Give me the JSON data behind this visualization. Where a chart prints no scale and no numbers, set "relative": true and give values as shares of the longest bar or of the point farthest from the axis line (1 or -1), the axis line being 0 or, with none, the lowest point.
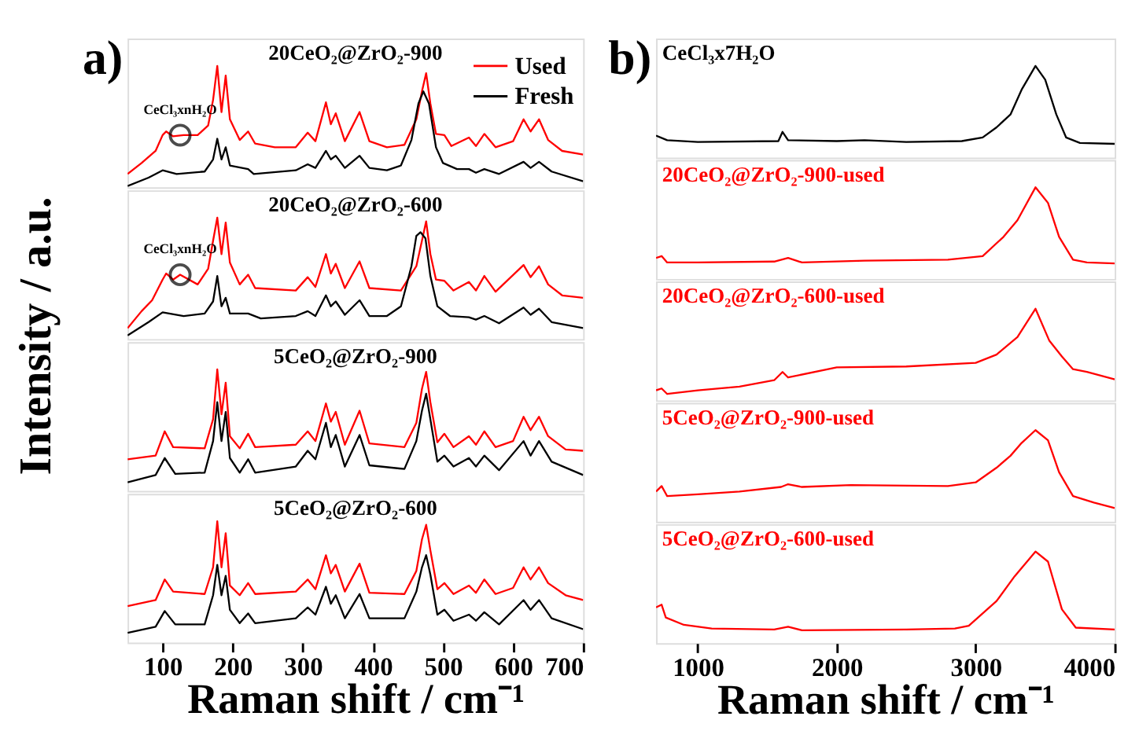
{
  "chart_data": [
    {
      "type": "line",
      "relative": true,
      "title": "20CeO₂@ZrO₂-900",
      "xlim": [
        50,
        700
      ],
      "xticks": [
        100,
        200,
        300,
        400,
        500,
        600,
        700
      ],
      "tick_labels": false,
      "legend": "top right",
      "annotations": [
        "a)",
        {
          "text": "CeCl₃xnH₂O",
          "x": 125,
          "y": 0.43
        }
      ],
      "series": [
        {
          "name": "Used",
          "color": "#ff0000",
          "x": [
            50,
            70,
            90,
            100,
            105,
            115,
            130,
            150,
            165,
            172,
            178,
            184,
            190,
            196,
            210,
            222,
            232,
            260,
            290,
            307,
            318,
            333,
            340,
            347,
            360,
            381,
            395,
            420,
            445,
            462,
            470,
            476,
            482,
            490,
            502,
            512,
            537,
            547,
            559,
            575,
            600,
            615,
            625,
            637,
            650,
            670,
            700
          ],
          "values": [
            0.11,
            0.2,
            0.3,
            0.43,
            0.46,
            0.42,
            0.43,
            0.43,
            0.51,
            0.72,
            1.0,
            0.62,
            0.92,
            0.56,
            0.39,
            0.46,
            0.36,
            0.33,
            0.33,
            0.45,
            0.38,
            0.7,
            0.52,
            0.61,
            0.38,
            0.62,
            0.38,
            0.33,
            0.35,
            0.56,
            0.79,
            0.94,
            0.69,
            0.44,
            0.43,
            0.34,
            0.41,
            0.34,
            0.44,
            0.33,
            0.38,
            0.56,
            0.46,
            0.56,
            0.39,
            0.3,
            0.27
          ]
        },
        {
          "name": "Fresh",
          "color": "#000000",
          "x": [
            50,
            80,
            100,
            120,
            160,
            172,
            178,
            184,
            190,
            196,
            222,
            230,
            290,
            307,
            318,
            333,
            340,
            347,
            360,
            381,
            395,
            420,
            440,
            455,
            465,
            472,
            480,
            490,
            500,
            520,
            537,
            547,
            559,
            580,
            615,
            625,
            637,
            655,
            700
          ],
          "values": [
            0.01,
            0.08,
            0.14,
            0.11,
            0.13,
            0.23,
            0.4,
            0.23,
            0.33,
            0.18,
            0.15,
            0.11,
            0.14,
            0.19,
            0.16,
            0.3,
            0.23,
            0.26,
            0.16,
            0.26,
            0.16,
            0.14,
            0.18,
            0.39,
            0.69,
            0.79,
            0.69,
            0.33,
            0.2,
            0.15,
            0.15,
            0.12,
            0.15,
            0.11,
            0.21,
            0.16,
            0.21,
            0.13,
            0.05
          ]
        }
      ]
    },
    {
      "type": "line",
      "relative": true,
      "title": "20CeO₂@ZrO₂-600",
      "ylabel": "Intensity / a.u.",
      "xlim": [
        50,
        700
      ],
      "xticks": [
        100,
        200,
        300,
        400,
        500,
        600,
        700
      ],
      "tick_labels": false,
      "annotations": [
        {
          "text": "CeCl₃xnH₂O",
          "x": 125,
          "y": 0.53
        }
      ],
      "series": [
        {
          "color": "#ff0000",
          "x": [
            50,
            70,
            85,
            100,
            105,
            115,
            125,
            150,
            165,
            172,
            178,
            184,
            190,
            196,
            210,
            222,
            232,
            290,
            307,
            318,
            333,
            340,
            347,
            360,
            381,
            395,
            440,
            462,
            470,
            476,
            482,
            490,
            502,
            515,
            537,
            547,
            559,
            575,
            615,
            625,
            637,
            650,
            670,
            700
          ],
          "values": [
            0.09,
            0.23,
            0.32,
            0.49,
            0.54,
            0.49,
            0.53,
            0.45,
            0.58,
            0.81,
            1.0,
            0.7,
            0.96,
            0.63,
            0.45,
            0.53,
            0.42,
            0.4,
            0.51,
            0.43,
            0.7,
            0.54,
            0.62,
            0.42,
            0.64,
            0.42,
            0.4,
            0.6,
            0.81,
            0.97,
            0.7,
            0.49,
            0.48,
            0.4,
            0.47,
            0.4,
            0.52,
            0.39,
            0.61,
            0.51,
            0.6,
            0.45,
            0.36,
            0.34
          ]
        },
        {
          "color": "#000000",
          "x": [
            50,
            80,
            100,
            130,
            160,
            172,
            178,
            184,
            190,
            196,
            222,
            240,
            290,
            307,
            318,
            333,
            340,
            347,
            360,
            381,
            395,
            420,
            440,
            455,
            462,
            468,
            475,
            482,
            492,
            510,
            537,
            547,
            559,
            580,
            615,
            625,
            637,
            655,
            700
          ],
          "values": [
            0.03,
            0.14,
            0.22,
            0.19,
            0.21,
            0.31,
            0.52,
            0.27,
            0.34,
            0.21,
            0.21,
            0.17,
            0.19,
            0.23,
            0.19,
            0.36,
            0.27,
            0.31,
            0.2,
            0.32,
            0.19,
            0.19,
            0.27,
            0.6,
            0.85,
            0.88,
            0.83,
            0.52,
            0.27,
            0.19,
            0.18,
            0.16,
            0.19,
            0.13,
            0.26,
            0.2,
            0.25,
            0.14,
            0.09
          ]
        }
      ]
    },
    {
      "type": "line",
      "relative": true,
      "title": "5CeO₂@ZrO₂-900",
      "xlim": [
        50,
        700
      ],
      "xticks": [
        100,
        200,
        300,
        400,
        500,
        600,
        700
      ],
      "tick_labels": false,
      "series": [
        {
          "color": "#ff0000",
          "x": [
            50,
            90,
            103,
            115,
            160,
            172,
            178,
            184,
            190,
            196,
            210,
            222,
            232,
            290,
            307,
            318,
            333,
            340,
            347,
            360,
            381,
            395,
            445,
            462,
            470,
            476,
            482,
            492,
            502,
            515,
            537,
            547,
            559,
            575,
            600,
            615,
            625,
            637,
            650,
            675,
            700
          ],
          "values": [
            0.26,
            0.29,
            0.49,
            0.36,
            0.35,
            0.59,
            1.0,
            0.63,
            0.89,
            0.45,
            0.35,
            0.47,
            0.36,
            0.38,
            0.49,
            0.41,
            0.72,
            0.57,
            0.65,
            0.38,
            0.66,
            0.39,
            0.36,
            0.56,
            0.84,
            0.98,
            0.73,
            0.4,
            0.47,
            0.36,
            0.45,
            0.38,
            0.49,
            0.36,
            0.41,
            0.61,
            0.5,
            0.61,
            0.45,
            0.34,
            0.33
          ]
        },
        {
          "color": "#000000",
          "x": [
            50,
            90,
            103,
            118,
            160,
            172,
            178,
            184,
            190,
            196,
            210,
            222,
            232,
            290,
            307,
            318,
            333,
            340,
            347,
            360,
            381,
            395,
            445,
            462,
            470,
            476,
            482,
            492,
            502,
            515,
            537,
            547,
            559,
            580,
            615,
            625,
            637,
            655,
            700
          ],
          "values": [
            0.07,
            0.13,
            0.27,
            0.14,
            0.15,
            0.41,
            0.73,
            0.41,
            0.65,
            0.27,
            0.15,
            0.26,
            0.15,
            0.2,
            0.33,
            0.26,
            0.56,
            0.36,
            0.46,
            0.2,
            0.46,
            0.21,
            0.18,
            0.41,
            0.66,
            0.8,
            0.59,
            0.24,
            0.29,
            0.2,
            0.27,
            0.2,
            0.29,
            0.17,
            0.41,
            0.29,
            0.41,
            0.24,
            0.13
          ]
        }
      ]
    },
    {
      "type": "line",
      "relative": true,
      "title": "5CeO₂@ZrO₂-600",
      "xlabel": "Raman shift / cm⁻¹",
      "xlim": [
        50,
        700
      ],
      "xticks": [
        100,
        200,
        300,
        400,
        500,
        600,
        700
      ],
      "tick_labels": "x",
      "series": [
        {
          "color": "#ff0000",
          "x": [
            50,
            90,
            103,
            115,
            160,
            172,
            178,
            184,
            190,
            196,
            210,
            222,
            232,
            290,
            307,
            318,
            333,
            340,
            347,
            360,
            381,
            395,
            445,
            462,
            470,
            476,
            482,
            492,
            502,
            515,
            537,
            547,
            559,
            575,
            600,
            615,
            625,
            637,
            650,
            675,
            700
          ],
          "values": [
            0.3,
            0.35,
            0.52,
            0.42,
            0.4,
            0.62,
            1.0,
            0.62,
            0.9,
            0.47,
            0.39,
            0.49,
            0.4,
            0.42,
            0.52,
            0.44,
            0.72,
            0.57,
            0.64,
            0.42,
            0.65,
            0.41,
            0.4,
            0.59,
            0.85,
            0.97,
            0.76,
            0.44,
            0.49,
            0.4,
            0.47,
            0.41,
            0.52,
            0.4,
            0.45,
            0.62,
            0.52,
            0.62,
            0.49,
            0.39,
            0.35
          ]
        },
        {
          "color": "#000000",
          "x": [
            50,
            90,
            103,
            118,
            160,
            172,
            178,
            184,
            190,
            196,
            210,
            222,
            232,
            290,
            307,
            318,
            333,
            340,
            347,
            360,
            381,
            395,
            445,
            462,
            470,
            476,
            482,
            492,
            502,
            515,
            537,
            547,
            559,
            580,
            615,
            625,
            637,
            655,
            700
          ],
          "values": [
            0.08,
            0.13,
            0.26,
            0.15,
            0.15,
            0.39,
            0.64,
            0.39,
            0.55,
            0.27,
            0.16,
            0.24,
            0.16,
            0.2,
            0.29,
            0.23,
            0.46,
            0.32,
            0.39,
            0.2,
            0.4,
            0.2,
            0.2,
            0.42,
            0.62,
            0.72,
            0.56,
            0.23,
            0.27,
            0.18,
            0.23,
            0.18,
            0.25,
            0.15,
            0.35,
            0.27,
            0.35,
            0.2,
            0.11
          ]
        }
      ]
    },
    {
      "type": "line",
      "relative": true,
      "title": "CeCl₃x7H₂O",
      "xlim": [
        700,
        4000
      ],
      "xticks": [
        1000,
        2000,
        3000,
        4000
      ],
      "tick_labels": false,
      "annotations": [
        "b)"
      ],
      "series": [
        {
          "color": "#000000",
          "x": [
            700,
            780,
            1000,
            1580,
            1610,
            1650,
            2000,
            2200,
            2500,
            2900,
            3050,
            3150,
            3250,
            3330,
            3430,
            3500,
            3580,
            3650,
            3750,
            4000
          ],
          "values": [
            0.24,
            0.19,
            0.17,
            0.18,
            0.28,
            0.19,
            0.18,
            0.19,
            0.17,
            0.18,
            0.22,
            0.33,
            0.47,
            0.74,
            1.0,
            0.85,
            0.47,
            0.22,
            0.16,
            0.15
          ]
        }
      ]
    },
    {
      "type": "line",
      "relative": true,
      "title": "20CeO₂@ZrO₂-900-used",
      "xlim": [
        700,
        4000
      ],
      "xticks": [
        1000,
        2000,
        3000,
        4000
      ],
      "tick_labels": false,
      "series": [
        {
          "color": "#ff0000",
          "x": [
            700,
            740,
            780,
            1000,
            1550,
            1650,
            1750,
            2200,
            2800,
            3050,
            3200,
            3300,
            3430,
            3520,
            3600,
            3700,
            3800,
            4000
          ],
          "values": [
            0.23,
            0.25,
            0.18,
            0.18,
            0.19,
            0.23,
            0.18,
            0.2,
            0.21,
            0.25,
            0.46,
            0.64,
            1.0,
            0.83,
            0.46,
            0.21,
            0.18,
            0.17
          ]
        }
      ]
    },
    {
      "type": "line",
      "relative": true,
      "title": "20CeO₂@ZrO₂-600-used",
      "xlim": [
        700,
        4000
      ],
      "xticks": [
        1000,
        2000,
        3000,
        4000
      ],
      "tick_labels": false,
      "series": [
        {
          "color": "#ff0000",
          "x": [
            700,
            740,
            780,
            1000,
            1300,
            1550,
            1610,
            1650,
            2000,
            2500,
            3000,
            3150,
            3300,
            3430,
            3530,
            3620,
            3700,
            3800,
            4000
          ],
          "values": [
            0.11,
            0.13,
            0.07,
            0.11,
            0.15,
            0.22,
            0.31,
            0.25,
            0.36,
            0.37,
            0.41,
            0.5,
            0.69,
            1.0,
            0.65,
            0.48,
            0.34,
            0.31,
            0.23
          ]
        }
      ]
    },
    {
      "type": "line",
      "relative": true,
      "title": "5CeO₂@ZrO₂-900-used",
      "xlim": [
        700,
        4000
      ],
      "xticks": [
        1000,
        2000,
        3000,
        4000
      ],
      "tick_labels": false,
      "series": [
        {
          "color": "#ff0000",
          "x": [
            700,
            740,
            780,
            1000,
            1300,
            1600,
            1650,
            1750,
            2100,
            2800,
            3000,
            3150,
            3250,
            3330,
            3430,
            3520,
            3600,
            3700,
            3850,
            4000
          ],
          "values": [
            0.33,
            0.39,
            0.28,
            0.3,
            0.33,
            0.38,
            0.41,
            0.38,
            0.4,
            0.39,
            0.43,
            0.59,
            0.72,
            0.86,
            1.0,
            0.89,
            0.54,
            0.28,
            0.21,
            0.15
          ]
        }
      ]
    },
    {
      "type": "line",
      "relative": true,
      "title": "5CeO₂@ZrO₂-600-used",
      "xlabel": "Raman shift / cm⁻¹",
      "xlim": [
        700,
        4000
      ],
      "xticks": [
        1000,
        2000,
        3000,
        4000
      ],
      "tick_labels": "x",
      "series": [
        {
          "color": "#ff0000",
          "x": [
            700,
            740,
            770,
            900,
            1100,
            1550,
            1650,
            1750,
            2500,
            2850,
            2950,
            3150,
            3280,
            3430,
            3520,
            3620,
            3720,
            4000
          ],
          "values": [
            0.39,
            0.42,
            0.28,
            0.2,
            0.16,
            0.15,
            0.18,
            0.14,
            0.15,
            0.16,
            0.19,
            0.46,
            0.73,
            1.0,
            0.89,
            0.37,
            0.17,
            0.15
          ]
        }
      ]
    }
  ]
}
